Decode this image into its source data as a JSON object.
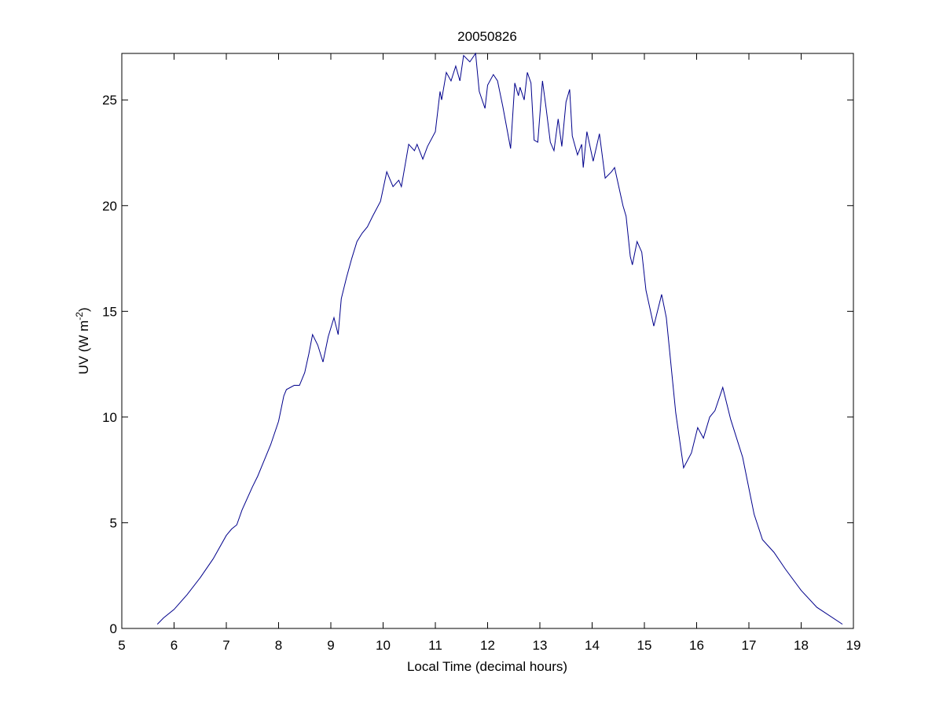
{
  "chart_data": {
    "type": "line",
    "title": "20050826",
    "xlabel": "Local Time (decimal hours)",
    "ylabel": {
      "text": "UV (W m",
      "sup": "-2",
      "end": ")"
    },
    "xlim": [
      5,
      19
    ],
    "xticks": [
      5,
      6,
      7,
      8,
      9,
      10,
      11,
      12,
      13,
      14,
      15,
      16,
      17,
      18,
      19
    ],
    "ylim": [
      0,
      27.2
    ],
    "yticks": [
      0,
      5,
      10,
      15,
      20,
      25
    ],
    "grid": false,
    "series": [
      {
        "color": "#00008b",
        "x": [
          5.68,
          5.8,
          6.0,
          6.25,
          6.5,
          6.75,
          7.0,
          7.1,
          7.2,
          7.3,
          7.5,
          7.6,
          7.7,
          7.85,
          8.0,
          8.1,
          8.15,
          8.3,
          8.4,
          8.5,
          8.58,
          8.65,
          8.75,
          8.85,
          8.95,
          9.06,
          9.14,
          9.2,
          9.3,
          9.4,
          9.5,
          9.6,
          9.7,
          9.8,
          9.95,
          10.07,
          10.19,
          10.3,
          10.35,
          10.49,
          10.6,
          10.65,
          10.76,
          10.85,
          11.0,
          11.09,
          11.12,
          11.21,
          11.3,
          11.39,
          11.47,
          11.54,
          11.66,
          11.77,
          11.84,
          11.95,
          12.0,
          12.11,
          12.19,
          12.29,
          12.44,
          12.52,
          12.59,
          12.62,
          12.7,
          12.76,
          12.83,
          12.89,
          12.96,
          13.05,
          13.12,
          13.2,
          13.27,
          13.35,
          13.42,
          13.5,
          13.57,
          13.62,
          13.72,
          13.8,
          13.83,
          13.9,
          14.02,
          14.14,
          14.25,
          14.37,
          14.43,
          14.59,
          14.65,
          14.73,
          14.77,
          14.86,
          14.95,
          15.03,
          15.18,
          15.33,
          15.42,
          15.6,
          15.75,
          15.9,
          16.02,
          16.13,
          16.25,
          16.35,
          16.5,
          16.65,
          16.88,
          17.1,
          17.26,
          17.48,
          17.7,
          18.0,
          18.3,
          18.79
        ],
        "values": [
          0.2,
          0.5,
          0.9,
          1.6,
          2.4,
          3.3,
          4.4,
          4.7,
          4.9,
          5.6,
          6.7,
          7.2,
          7.8,
          8.7,
          9.8,
          11.0,
          11.3,
          11.5,
          11.5,
          12.1,
          13.0,
          13.9,
          13.4,
          12.6,
          13.8,
          14.7,
          13.9,
          15.6,
          16.6,
          17.5,
          18.3,
          18.7,
          19.0,
          19.5,
          20.2,
          21.6,
          20.9,
          21.2,
          20.9,
          22.9,
          22.6,
          22.9,
          22.2,
          22.8,
          23.5,
          25.4,
          25.0,
          26.3,
          25.9,
          26.6,
          25.9,
          27.1,
          26.8,
          27.2,
          25.4,
          24.6,
          25.7,
          26.2,
          25.9,
          24.7,
          22.7,
          25.8,
          25.2,
          25.6,
          25.0,
          26.3,
          25.8,
          23.1,
          23.0,
          25.9,
          24.6,
          23.0,
          22.6,
          24.1,
          22.8,
          24.9,
          25.5,
          23.3,
          22.4,
          22.9,
          21.8,
          23.5,
          22.1,
          23.4,
          21.3,
          21.6,
          21.8,
          20.0,
          19.5,
          17.6,
          17.2,
          18.3,
          17.8,
          16.0,
          14.3,
          15.8,
          14.7,
          10.2,
          7.6,
          8.3,
          9.5,
          9.0,
          10.0,
          10.3,
          11.4,
          9.9,
          8.1,
          5.4,
          4.2,
          3.6,
          2.8,
          1.8,
          1.0,
          0.2
        ]
      }
    ]
  }
}
